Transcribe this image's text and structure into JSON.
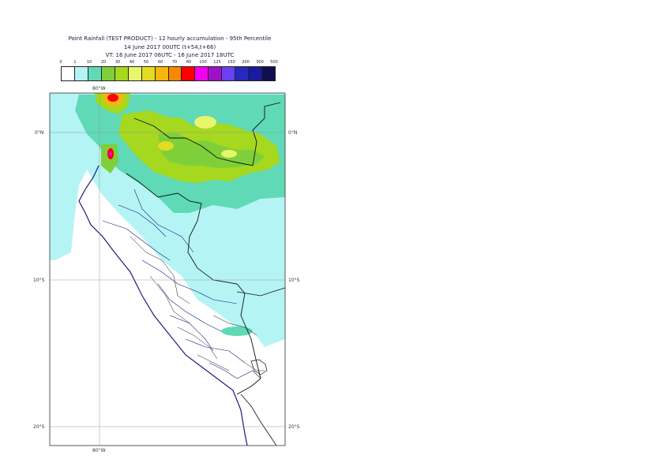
{
  "header": {
    "title": "Point Rainfall (TEST PRODUCT) - 12 hourly accumulation - 95th Percentile",
    "run": "14 June 2017 00UTC (t+54,t+66)",
    "valid": "VT: 16 June 2017 06UTC - 16 June 2017 18UTC"
  },
  "legend": {
    "ticks": [
      "0",
      "1",
      "10",
      "20",
      "30",
      "40",
      "50",
      "60",
      "70",
      "80",
      "100",
      "125",
      "150",
      "200",
      "300",
      "500"
    ],
    "colors": [
      "#ffffff",
      "#b5f4f4",
      "#5fd9b6",
      "#7fcf3a",
      "#a5d81f",
      "#e9f56b",
      "#e3dc20",
      "#f5b60e",
      "#f58a00",
      "#ff0000",
      "#f200f2",
      "#a010c8",
      "#6a40f0",
      "#2828c0",
      "#1a1aa0",
      "#101050"
    ]
  },
  "map": {
    "lon_labels": [
      "80°W",
      "80°W"
    ],
    "lat_labels": {
      "eq": "0°N",
      "s10": "10°S",
      "s20": "20°S"
    }
  }
}
